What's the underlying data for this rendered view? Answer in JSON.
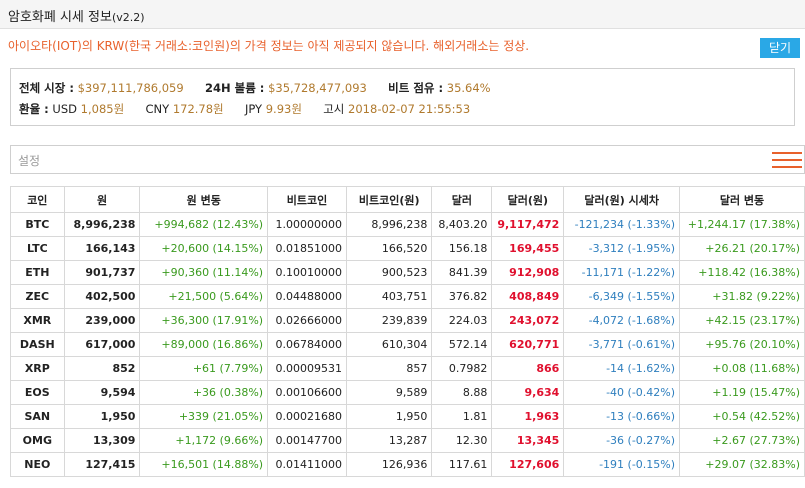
{
  "header": {
    "title": "암호화폐 시세 정보",
    "version": "(v2.2)"
  },
  "notice": "아이오타(IOT)의 KRW(한국 거래소:코인원)의 가격 정보는 아직 제공되지 않습니다. 해외거래소는 정상.",
  "close_label": "닫기",
  "stats": {
    "market_cap_label": "전체 시장 :",
    "market_cap": "$397,111,786,059",
    "volume_label": "24H 볼륨 :",
    "volume": "$35,728,477,093",
    "btc_share_label": "비트 점유 :",
    "btc_share": "35.64%",
    "fx_label": "환율 :",
    "usd_label": "USD",
    "usd": "1,085원",
    "cny_label": "CNY",
    "cny": "172.78원",
    "jpy_label": "JPY",
    "jpy": "9.93원",
    "notice_label": "고시",
    "notice_time": "2018-02-07 21:55:53"
  },
  "settings_label": "설정",
  "menu_icon": "hamburger-menu-icon",
  "colors": {
    "accent": "#e8612c",
    "button": "#2aa8e6",
    "positive": "#3a9a1e",
    "negative": "#2f7fbe",
    "highlight": "#e0102e",
    "value": "#b07a2e"
  },
  "table": {
    "headers": [
      "코인",
      "원",
      "원 변동",
      "비트코인",
      "비트코인(원)",
      "달러",
      "달러(원)",
      "달러(원) 시세차",
      "달러 변동"
    ],
    "rows": [
      [
        "BTC",
        "8,996,238",
        "+994,682 (12.43%)",
        "1.00000000",
        "8,996,238",
        "8,403.20",
        "9,117,472",
        "-121,234 (-1.33%)",
        "+1,244.17 (17.38%)"
      ],
      [
        "LTC",
        "166,143",
        "+20,600 (14.15%)",
        "0.01851000",
        "166,520",
        "156.18",
        "169,455",
        "-3,312 (-1.95%)",
        "+26.21 (20.17%)"
      ],
      [
        "ETH",
        "901,737",
        "+90,360 (11.14%)",
        "0.10010000",
        "900,523",
        "841.39",
        "912,908",
        "-11,171 (-1.22%)",
        "+118.42 (16.38%)"
      ],
      [
        "ZEC",
        "402,500",
        "+21,500 (5.64%)",
        "0.04488000",
        "403,751",
        "376.82",
        "408,849",
        "-6,349 (-1.55%)",
        "+31.82 (9.22%)"
      ],
      [
        "XMR",
        "239,000",
        "+36,300 (17.91%)",
        "0.02666000",
        "239,839",
        "224.03",
        "243,072",
        "-4,072 (-1.68%)",
        "+42.15 (23.17%)"
      ],
      [
        "DASH",
        "617,000",
        "+89,000 (16.86%)",
        "0.06784000",
        "610,304",
        "572.14",
        "620,771",
        "-3,771 (-0.61%)",
        "+95.76 (20.10%)"
      ],
      [
        "XRP",
        "852",
        "+61 (7.79%)",
        "0.00009531",
        "857",
        "0.7982",
        "866",
        "-14 (-1.62%)",
        "+0.08 (11.68%)"
      ],
      [
        "EOS",
        "9,594",
        "+36 (0.38%)",
        "0.00106600",
        "9,589",
        "8.88",
        "9,634",
        "-40 (-0.42%)",
        "+1.19 (15.47%)"
      ],
      [
        "SAN",
        "1,950",
        "+339 (21.05%)",
        "0.00021680",
        "1,950",
        "1.81",
        "1,963",
        "-13 (-0.66%)",
        "+0.54 (42.52%)"
      ],
      [
        "OMG",
        "13,309",
        "+1,172 (9.66%)",
        "0.00147700",
        "13,287",
        "12.30",
        "13,345",
        "-36 (-0.27%)",
        "+2.67 (27.73%)"
      ],
      [
        "NEO",
        "127,415",
        "+16,501 (14.88%)",
        "0.01411000",
        "126,936",
        "117.61",
        "127,606",
        "-191 (-0.15%)",
        "+29.07 (32.83%)"
      ]
    ]
  }
}
